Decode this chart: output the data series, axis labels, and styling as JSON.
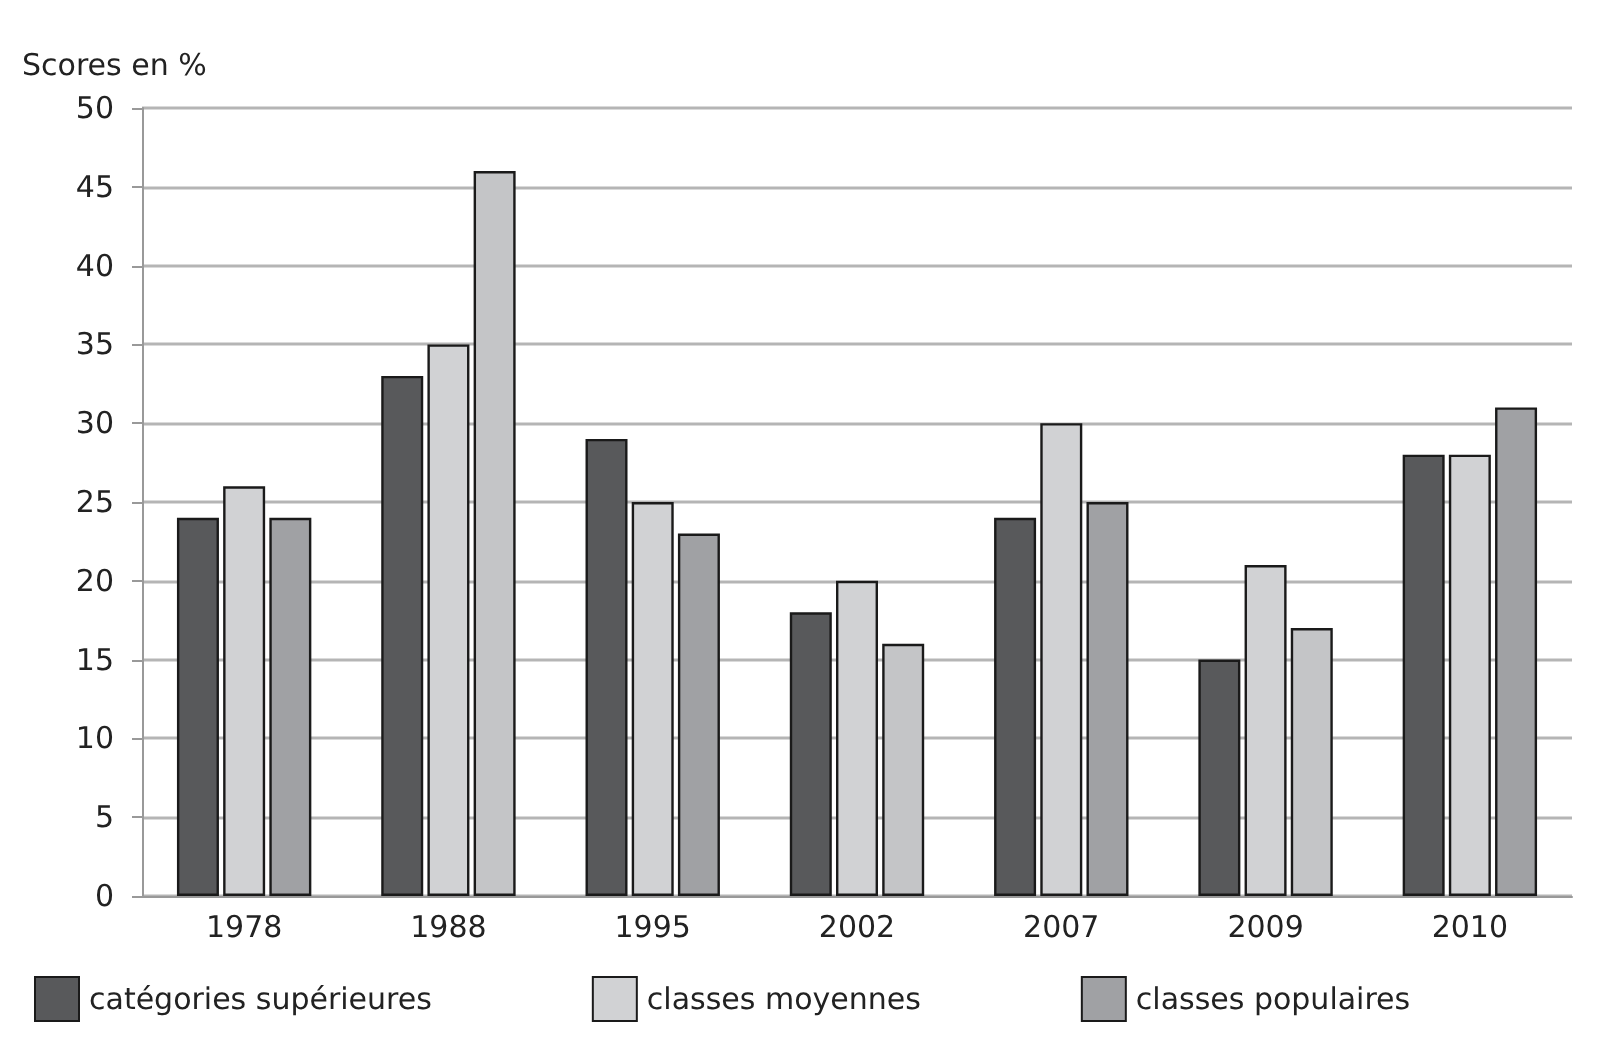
{
  "chart_data": {
    "type": "bar",
    "ylabel": "Scores en %",
    "categories": [
      "1978",
      "1988",
      "1995",
      "2002",
      "2007",
      "2009",
      "2010"
    ],
    "series": [
      {
        "name": "catégories supérieures",
        "color": "#58595b",
        "values": [
          24,
          33,
          29,
          18,
          24,
          15,
          28
        ]
      },
      {
        "name": "classes moyennes",
        "color": "#d1d2d4",
        "values": [
          26,
          35,
          25,
          20,
          30,
          21,
          28
        ]
      },
      {
        "name": "classes populaires",
        "color": "#a0a1a4",
        "colors": [
          "#a0a1a4",
          "#c4c5c7",
          "#a0a1a4",
          "#c4c5c7",
          "#a0a1a4",
          "#c4c5c7",
          "#a0a1a4"
        ],
        "values": [
          24,
          46,
          23,
          16,
          25,
          17,
          31
        ]
      }
    ],
    "ylim": [
      0,
      50
    ],
    "yticks": [
      0,
      5,
      10,
      15,
      20,
      25,
      30,
      35,
      40,
      45,
      50
    ],
    "grid": "y",
    "legend": "bottom"
  }
}
